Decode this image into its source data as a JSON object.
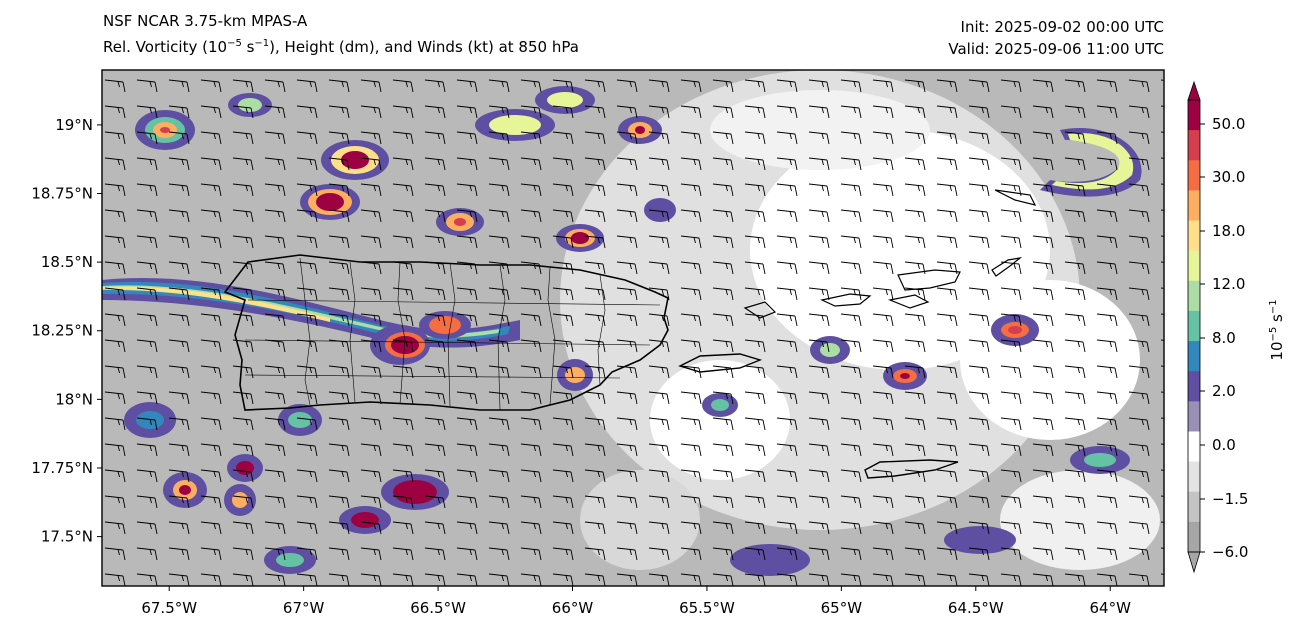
{
  "header": {
    "model": "NSF NCAR 3.75-km MPAS-A",
    "variable_prefix": "Rel. Vorticity (10",
    "variable_exp": "−5",
    "variable_mid": " s",
    "variable_exp2": "−1",
    "variable_suffix": "), Height (dm), and Winds (kt) at 850 hPa",
    "init": "Init: 2025-09-02 00:00 UTC",
    "valid": "Valid: 2025-09-06 11:00 UTC"
  },
  "map": {
    "lon_range": [
      -67.75,
      -63.8
    ],
    "lat_range": [
      17.32,
      19.2
    ],
    "lon_ticks": [
      "67.5°W",
      "67°W",
      "66.5°W",
      "66°W",
      "65.5°W",
      "65°W",
      "64.5°W",
      "64°W"
    ],
    "lat_ticks": [
      "19°N",
      "18.75°N",
      "18.5°N",
      "18.25°N",
      "18°N",
      "17.75°N",
      "17.5°N"
    ],
    "barb_direction": "east"
  },
  "colorbar": {
    "label_base": "10",
    "label_exp": "−5",
    "label_unit": " s",
    "label_exp2": "−1",
    "tick_labels": [
      "−6.0",
      "−1.5",
      "0.0",
      "2.0",
      "8.0",
      "12.0",
      "18.0",
      "30.0",
      "50.0"
    ],
    "colors": [
      "#a6a6a6",
      "#c4c4c4",
      "#e3e3e3",
      "#ffffff",
      "#9a8fb7",
      "#5e4fa2",
      "#3288bd",
      "#66c2a5",
      "#abdda4",
      "#e6f598",
      "#fee08b",
      "#fdae61",
      "#f46d43",
      "#d53e4f",
      "#9e0142"
    ]
  }
}
